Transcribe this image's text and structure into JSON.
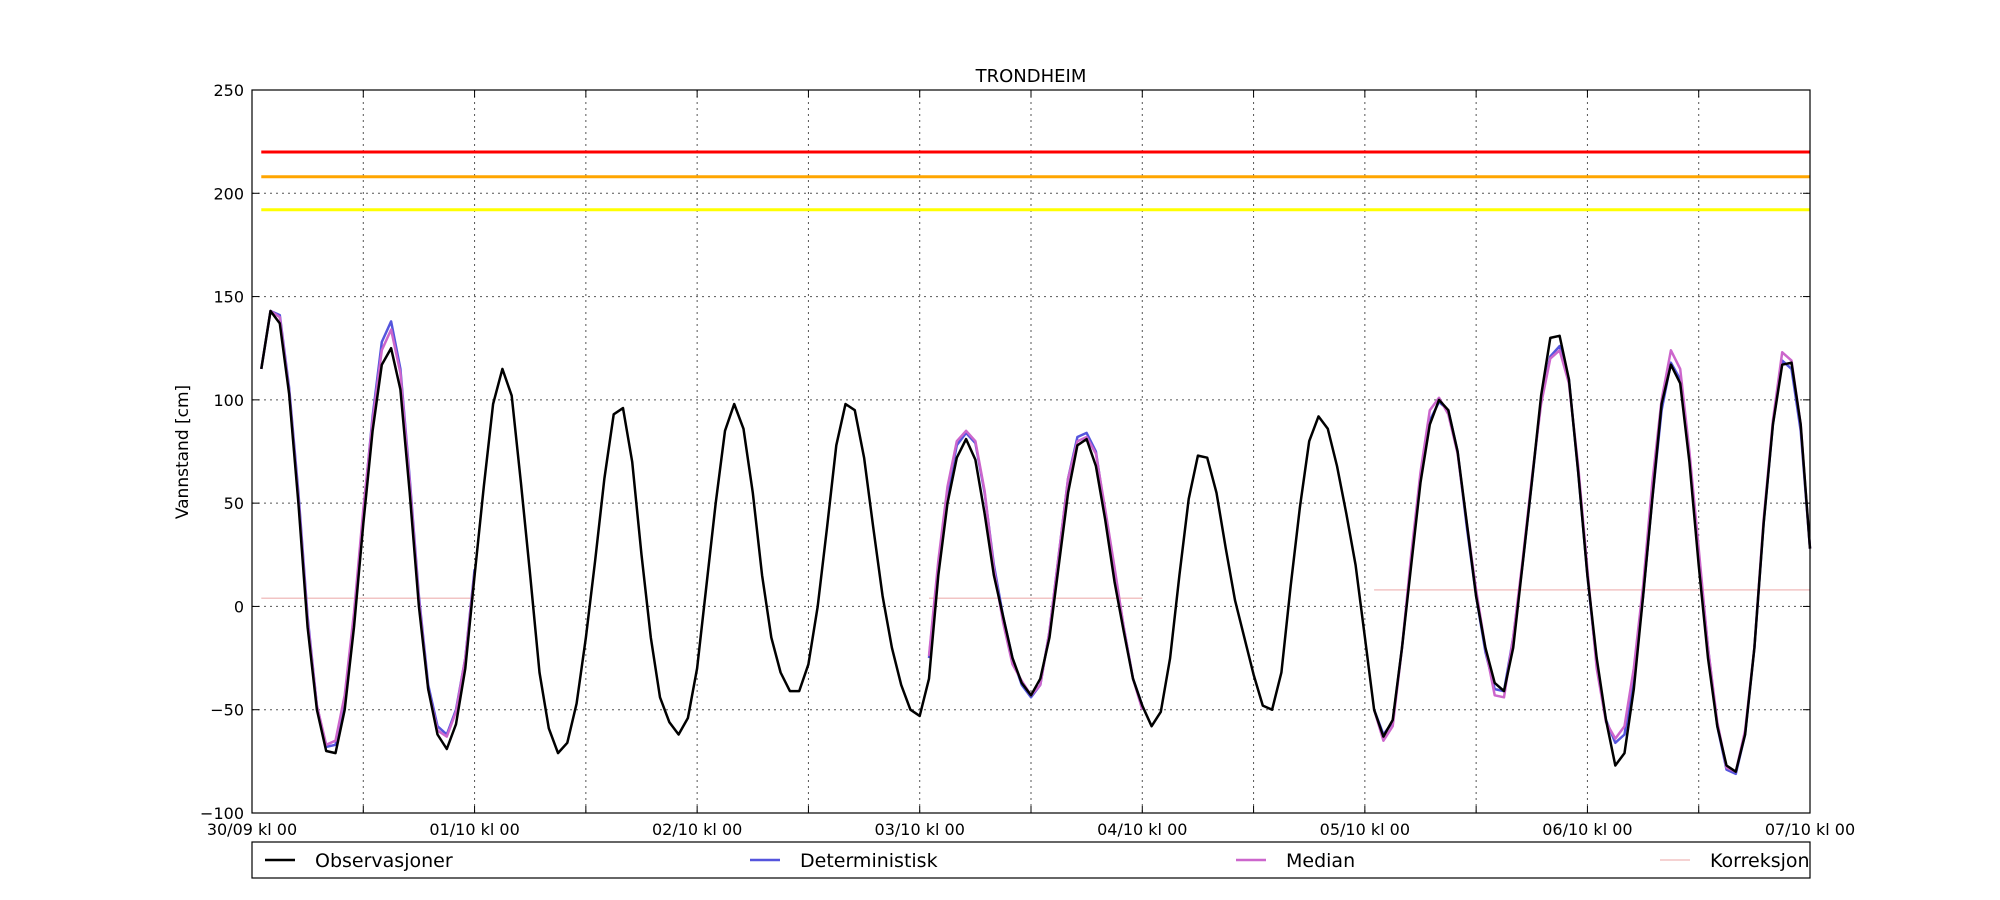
{
  "chart_data": {
    "type": "line",
    "title": "TRONDHEIM",
    "ylabel": "Vannstand [cm]",
    "xlabel": "",
    "ylim": [
      -100,
      250
    ],
    "xlim": [
      0,
      168
    ],
    "yticks": [
      -100,
      -50,
      0,
      50,
      100,
      150,
      200,
      250
    ],
    "xticks": [
      {
        "x": 0,
        "label": "30/09 kl 00"
      },
      {
        "x": 24,
        "label": "01/10 kl 00"
      },
      {
        "x": 48,
        "label": "02/10 kl 00"
      },
      {
        "x": 72,
        "label": "03/10 kl 00"
      },
      {
        "x": 96,
        "label": "04/10 kl 00"
      },
      {
        "x": 120,
        "label": "05/10 kl 00"
      },
      {
        "x": 144,
        "label": "06/10 kl 00"
      },
      {
        "x": 168,
        "label": "07/10 kl 00"
      }
    ],
    "x_unit": "hours after 30/09 kl 00",
    "grid": true,
    "legend_position": "bottom",
    "thresholds": [
      {
        "value": 220,
        "color": "#ff0000"
      },
      {
        "value": 208,
        "color": "#ffa500"
      },
      {
        "value": 192,
        "color": "#ffff00"
      }
    ],
    "series": [
      {
        "name": "Observasjoner",
        "color": "#000000",
        "x": [
          1,
          2,
          3,
          4,
          5,
          6,
          7,
          8,
          9,
          10,
          11,
          12,
          13,
          14,
          15,
          16,
          17,
          18,
          19,
          20,
          21,
          22,
          23,
          24,
          25,
          26,
          27,
          28,
          29,
          30,
          31,
          32,
          33,
          34,
          35,
          36,
          37,
          38,
          39,
          40,
          41,
          42,
          43,
          44,
          45,
          46,
          47,
          48,
          49,
          50,
          51,
          52,
          53,
          54,
          55,
          56,
          57,
          58,
          59,
          60,
          61,
          62,
          63,
          64,
          65,
          66,
          67,
          68,
          69,
          70,
          71,
          72,
          73,
          74,
          75,
          76,
          77,
          78,
          79,
          80,
          81,
          82,
          83,
          84,
          85,
          86,
          87,
          88,
          89,
          90,
          91,
          92,
          93,
          94,
          95,
          96,
          97,
          98,
          99,
          100,
          101,
          102,
          103,
          104,
          105,
          106,
          107,
          108,
          109,
          110,
          111,
          112,
          113,
          114,
          115,
          116,
          117,
          118,
          119,
          120,
          121,
          122,
          123,
          124,
          125,
          126,
          127,
          128,
          129,
          130,
          131,
          132,
          133,
          134,
          135,
          136,
          137,
          138,
          139,
          140,
          141,
          142,
          143,
          144,
          145,
          146,
          147,
          148,
          149,
          150,
          151,
          152,
          153,
          154,
          155,
          156,
          157,
          158,
          159,
          160,
          161,
          162,
          163,
          164,
          165,
          166,
          167,
          168
        ],
        "values": [
          115,
          143,
          137,
          103,
          50,
          -10,
          -50,
          -70,
          -71,
          -50,
          -10,
          40,
          85,
          117,
          125,
          105,
          55,
          0,
          -40,
          -62,
          -69,
          -57,
          -30,
          15,
          58,
          98,
          115,
          102,
          60,
          15,
          -32,
          -59,
          -71,
          -66,
          -47,
          -15,
          22,
          62,
          93,
          96,
          70,
          25,
          -15,
          -44,
          -56,
          -62,
          -54,
          -30,
          10,
          50,
          85,
          98,
          86,
          55,
          15,
          -15,
          -32,
          -41,
          -41,
          -28,
          0,
          38,
          78,
          98,
          95,
          72,
          38,
          5,
          -20,
          -38,
          -50,
          -53,
          -35,
          15,
          50,
          72,
          81,
          71,
          45,
          15,
          -5,
          -25,
          -37,
          -43,
          -35,
          -15,
          20,
          55,
          78,
          81,
          68,
          42,
          12,
          -12,
          -35,
          -48,
          -58,
          -51,
          -25,
          15,
          52,
          73,
          72,
          55,
          28,
          3,
          -15,
          -33,
          -48,
          -50,
          -32,
          10,
          48,
          80,
          92,
          86,
          68,
          45,
          20,
          -15,
          -50,
          -63,
          -55,
          -20,
          20,
          60,
          88,
          100,
          95,
          75,
          40,
          5,
          -20,
          -37,
          -41,
          -20,
          20,
          60,
          102,
          130,
          131,
          110,
          65,
          15,
          -25,
          -55,
          -77,
          -71,
          -40,
          5,
          52,
          98,
          117,
          108,
          70,
          20,
          -25,
          -58,
          -77,
          -80,
          -62,
          -20,
          40,
          88,
          117,
          118,
          88,
          28
        ]
      },
      {
        "name": "Deterministisk",
        "color": "#5555dd",
        "segments": [
          {
            "x": [
              1,
              2,
              3,
              4,
              5,
              6,
              7,
              8,
              9,
              10,
              11,
              12,
              13,
              14,
              15,
              16,
              17,
              18,
              19,
              20,
              21,
              22,
              23,
              24
            ],
            "values": [
              115,
              143,
              141,
              106,
              55,
              -5,
              -48,
              -68,
              -67,
              -45,
              -5,
              45,
              92,
              128,
              138,
              115,
              62,
              5,
              -38,
              -58,
              -62,
              -50,
              -25,
              18
            ]
          },
          {
            "x": [
              73,
              74,
              75,
              76,
              77,
              78,
              79,
              80,
              81,
              82,
              83,
              84,
              85,
              86,
              87,
              88,
              89,
              90,
              91,
              92,
              93,
              94,
              95,
              96
            ],
            "values": [
              -25,
              20,
              55,
              78,
              84,
              79,
              55,
              20,
              -5,
              -25,
              -38,
              -44,
              -38,
              -12,
              25,
              62,
              82,
              84,
              75,
              45,
              17,
              -10,
              -35,
              -48
            ]
          },
          {
            "x": [
              121,
              122,
              123,
              124,
              125,
              126,
              127,
              128,
              129,
              130,
              131,
              132,
              133,
              134,
              135,
              136,
              137,
              138,
              139,
              140,
              141,
              142,
              143,
              144,
              145,
              146,
              147,
              148,
              149,
              150,
              151,
              152,
              153,
              154,
              155,
              156,
              157,
              158,
              159,
              160,
              161,
              162,
              163,
              164,
              165,
              166,
              167,
              168
            ],
            "values": [
              -50,
              -62,
              -56,
              -20,
              22,
              62,
              90,
              99,
              95,
              75,
              38,
              5,
              -22,
              -40,
              -41,
              -15,
              20,
              60,
              100,
              121,
              126,
              110,
              65,
              15,
              -28,
              -55,
              -66,
              -62,
              -35,
              5,
              52,
              95,
              118,
              110,
              72,
              25,
              -20,
              -58,
              -79,
              -81,
              -62,
              -20,
              40,
              88,
              119,
              115,
              85,
              28
            ]
          }
        ]
      },
      {
        "name": "Median",
        "color": "#cc66cc",
        "segments": [
          {
            "x": [
              1,
              2,
              3,
              4,
              5,
              6,
              7,
              8,
              9,
              10,
              11,
              12,
              13,
              14,
              15,
              16,
              17,
              18,
              19,
              20,
              21,
              22,
              23,
              24
            ],
            "values": [
              115,
              143,
              140,
              104,
              52,
              -7,
              -48,
              -67,
              -65,
              -43,
              -3,
              47,
              90,
              124,
              134,
              113,
              60,
              3,
              -40,
              -60,
              -63,
              -51,
              -25,
              16
            ]
          },
          {
            "x": [
              73,
              74,
              75,
              76,
              77,
              78,
              79,
              80,
              81,
              82,
              83,
              84,
              85,
              86,
              87,
              88,
              89,
              90,
              91,
              92,
              93,
              94,
              95,
              96
            ],
            "values": [
              -24,
              22,
              58,
              80,
              85,
              80,
              56,
              18,
              -8,
              -28,
              -36,
              -43,
              -38,
              -12,
              25,
              62,
              80,
              82,
              74,
              47,
              19,
              -10,
              -35,
              -50
            ]
          },
          {
            "x": [
              121,
              122,
              123,
              124,
              125,
              126,
              127,
              128,
              129,
              130,
              131,
              132,
              133,
              134,
              135,
              136,
              137,
              138,
              139,
              140,
              141,
              142,
              143,
              144,
              145,
              146,
              147,
              148,
              149,
              150,
              151,
              152,
              153,
              154,
              155,
              156,
              157,
              158,
              159,
              160,
              161,
              162,
              163,
              164,
              165,
              166,
              167,
              168
            ],
            "values": [
              -50,
              -65,
              -58,
              -20,
              25,
              65,
              95,
              101,
              93,
              74,
              40,
              8,
              -20,
              -43,
              -44,
              -15,
              22,
              62,
              98,
              120,
              124,
              108,
              68,
              18,
              -30,
              -56,
              -64,
              -58,
              -30,
              10,
              60,
              100,
              124,
              115,
              75,
              28,
              -20,
              -56,
              -78,
              -80,
              -60,
              -20,
              42,
              90,
              123,
              119,
              88,
              28
            ]
          }
        ]
      },
      {
        "name": "Korreksjon",
        "color": "#f2c4c4",
        "segments": [
          {
            "x": [
              1,
              24
            ],
            "values": [
              4,
              4
            ]
          },
          {
            "x": [
              73,
              96
            ],
            "values": [
              4,
              4
            ]
          },
          {
            "x": [
              121,
              168
            ],
            "values": [
              8,
              8
            ]
          }
        ]
      }
    ]
  }
}
